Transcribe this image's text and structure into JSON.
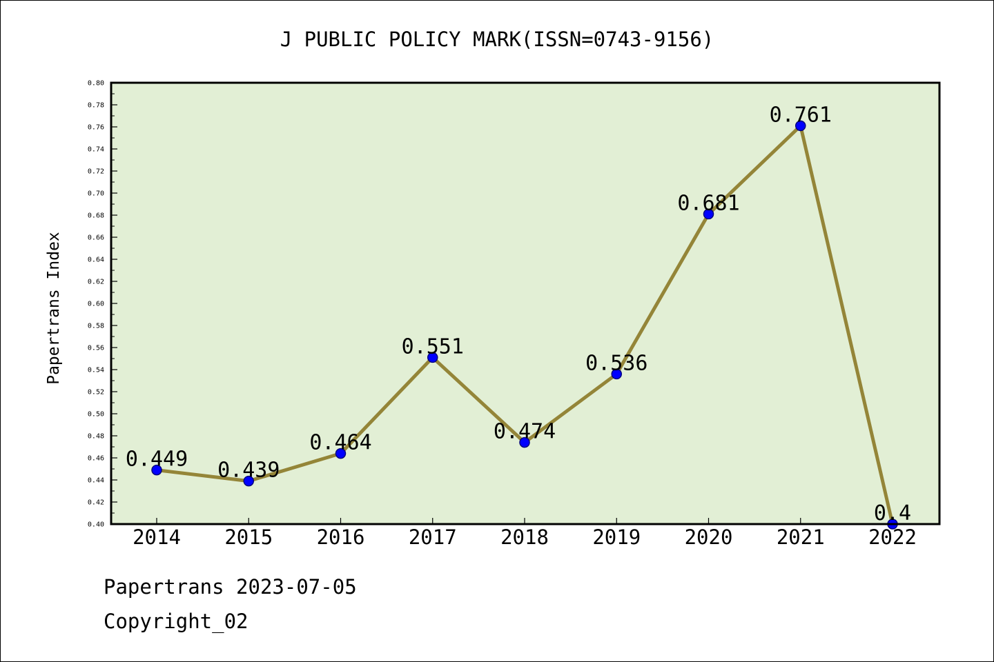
{
  "chart_data": {
    "type": "line",
    "title": "J PUBLIC POLICY MARK(ISSN=0743-9156)",
    "xlabel": "",
    "ylabel": "Papertrans Index",
    "categories": [
      "2014",
      "2015",
      "2016",
      "2017",
      "2018",
      "2019",
      "2020",
      "2021",
      "2022"
    ],
    "series": [
      {
        "values": [
          0.449,
          0.439,
          0.464,
          0.551,
          0.474,
          0.536,
          0.681,
          0.761,
          0.4
        ],
        "labels": [
          "0.449",
          "0.439",
          "0.464",
          "0.551",
          "0.474",
          "0.536",
          "0.681",
          "0.761",
          "0.4"
        ]
      }
    ],
    "ylim": [
      0.4,
      0.8
    ],
    "yticks": [
      "0.40",
      "0.42",
      "0.44",
      "0.46",
      "0.48",
      "0.50",
      "0.52",
      "0.54",
      "0.56",
      "0.58",
      "0.60",
      "0.62",
      "0.64",
      "0.66",
      "0.68",
      "0.70",
      "0.72",
      "0.74",
      "0.76",
      "0.78",
      "0.80"
    ],
    "grid": false,
    "colors": {
      "plot_background": "#e2efd5",
      "line": "#948538",
      "marker": "#0000ff",
      "marker_edge": "#000080"
    }
  },
  "footer": {
    "line1": "Papertrans 2023-07-05",
    "line2": "Copyright_02"
  }
}
